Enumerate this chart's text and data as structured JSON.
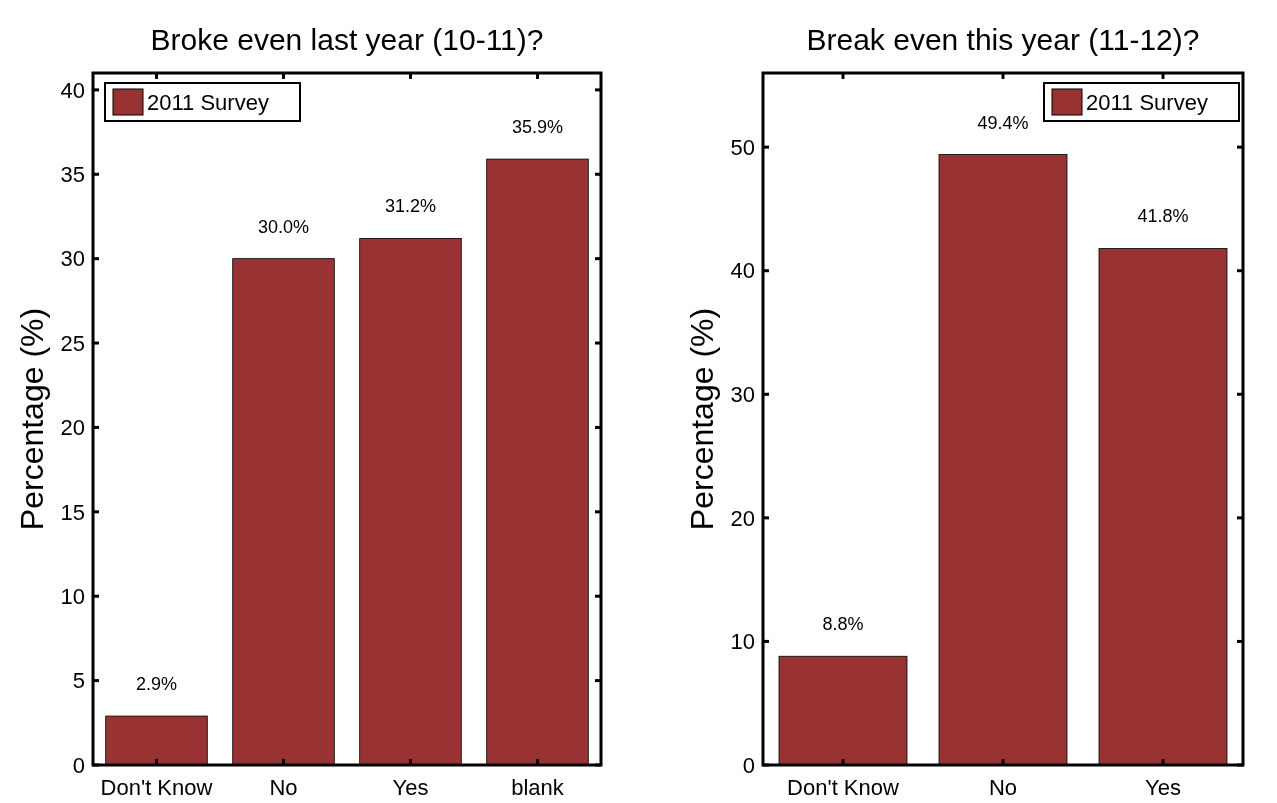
{
  "chart_data": [
    {
      "type": "bar",
      "title": "Broke even last year (10-11)?",
      "ylabel": "Percentage (%)",
      "categories": [
        "Don't Know",
        "No",
        "Yes",
        "blank"
      ],
      "series": [
        {
          "name": "2011 Survey",
          "color": "#993333",
          "values": [
            2.9,
            30.0,
            31.2,
            35.9
          ],
          "value_labels": [
            "2.9%",
            "30.0%",
            "31.2%",
            "35.9%"
          ]
        }
      ],
      "ylim": [
        0,
        41
      ],
      "yticks": [
        0,
        5,
        10,
        15,
        20,
        25,
        30,
        35,
        40
      ],
      "legend": "top left",
      "grid": false
    },
    {
      "type": "bar",
      "title": "Break even this year (11-12)?",
      "ylabel": "Percentage (%)",
      "categories": [
        "Don't Know",
        "No",
        "Yes"
      ],
      "series": [
        {
          "name": "2011 Survey",
          "color": "#993333",
          "values": [
            8.8,
            49.4,
            41.8
          ],
          "value_labels": [
            "8.8%",
            "49.4%",
            "41.8%"
          ]
        }
      ],
      "ylim": [
        0,
        56
      ],
      "yticks": [
        0,
        10,
        20,
        30,
        40,
        50
      ],
      "legend": "top right",
      "grid": false
    }
  ]
}
